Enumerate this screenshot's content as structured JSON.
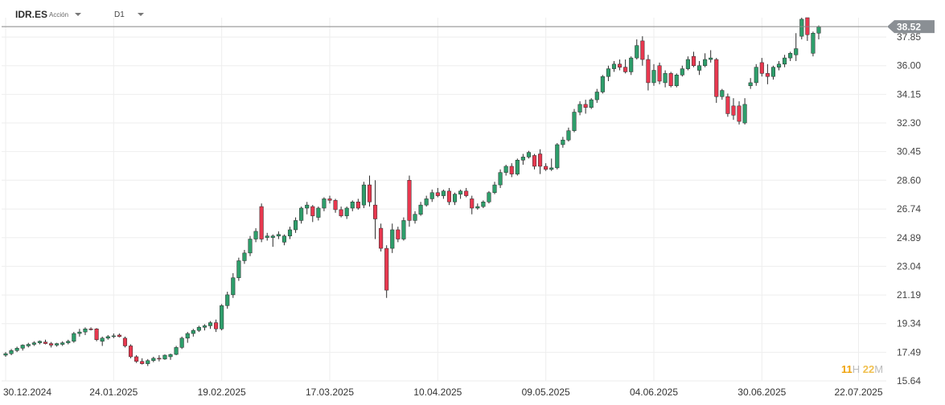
{
  "toolbar": {
    "symbol": "IDR.ES",
    "type_label": "Acción",
    "timeframe": "D1"
  },
  "timer": {
    "hours": "11",
    "hours_unit": "H",
    "minutes": "22",
    "minutes_unit": "M"
  },
  "chart_data": {
    "type": "candlestick",
    "title": "",
    "xlabel": "",
    "ylabel": "",
    "ylim": [
      15.64,
      39.1
    ],
    "y_ticks": [
      "37.85",
      "36.00",
      "34.15",
      "32.30",
      "30.45",
      "28.60",
      "26.74",
      "24.89",
      "23.04",
      "21.19",
      "19.34",
      "17.49",
      "15.64"
    ],
    "x_ticks": [
      "30.12.2024",
      "24.01.2025",
      "19.02.2025",
      "17.03.2025",
      "10.04.2025",
      "09.05.2025",
      "04.06.2025",
      "30.06.2025",
      "22.07.2025"
    ],
    "x_tick_index": [
      0,
      19,
      38,
      57,
      76,
      95,
      114,
      133,
      150
    ],
    "last_price": "38.52",
    "colors": {
      "up": "#2e9e6b",
      "down": "#e8384f",
      "grid": "#eeeeee",
      "price_line": "#888888",
      "price_tag": "#8a8f94"
    },
    "candles": [
      [
        17.3,
        17.5,
        17.2,
        17.4
      ],
      [
        17.4,
        17.7,
        17.3,
        17.6
      ],
      [
        17.6,
        17.85,
        17.5,
        17.75
      ],
      [
        17.75,
        18.0,
        17.6,
        17.95
      ],
      [
        17.9,
        18.1,
        17.8,
        18.0
      ],
      [
        18.0,
        18.2,
        17.9,
        18.1
      ],
      [
        18.1,
        18.25,
        18.0,
        18.2
      ],
      [
        18.15,
        18.3,
        18.0,
        18.05
      ],
      [
        18.05,
        18.15,
        17.8,
        17.95
      ],
      [
        17.95,
        18.1,
        17.85,
        18.05
      ],
      [
        18.0,
        18.2,
        17.9,
        18.1
      ],
      [
        18.1,
        18.3,
        18.0,
        18.2
      ],
      [
        18.2,
        18.8,
        18.1,
        18.7
      ],
      [
        18.7,
        19.0,
        18.5,
        18.8
      ],
      [
        18.8,
        19.1,
        18.6,
        19.0
      ],
      [
        19.0,
        19.1,
        18.9,
        18.95
      ],
      [
        19.0,
        19.05,
        18.2,
        18.3
      ],
      [
        18.2,
        18.5,
        17.9,
        18.4
      ],
      [
        18.4,
        18.6,
        18.3,
        18.5
      ],
      [
        18.5,
        18.7,
        18.4,
        18.55
      ],
      [
        18.6,
        18.7,
        18.45,
        18.5
      ],
      [
        18.4,
        18.5,
        17.8,
        17.9
      ],
      [
        17.9,
        18.0,
        17.1,
        17.2
      ],
      [
        17.2,
        17.3,
        16.8,
        16.9
      ],
      [
        16.9,
        17.1,
        16.7,
        16.75
      ],
      [
        16.75,
        17.05,
        16.6,
        16.95
      ],
      [
        16.95,
        17.2,
        16.85,
        17.1
      ],
      [
        17.1,
        17.3,
        16.9,
        17.05
      ],
      [
        17.05,
        17.35,
        17.0,
        17.3
      ],
      [
        17.2,
        17.4,
        17.0,
        17.35
      ],
      [
        17.35,
        17.9,
        17.3,
        17.8
      ],
      [
        17.8,
        18.5,
        17.7,
        18.4
      ],
      [
        18.4,
        18.8,
        18.1,
        18.7
      ],
      [
        18.7,
        19.0,
        18.5,
        18.9
      ],
      [
        18.9,
        19.2,
        18.8,
        19.1
      ],
      [
        19.1,
        19.3,
        18.9,
        19.2
      ],
      [
        19.2,
        19.5,
        19.0,
        19.4
      ],
      [
        19.4,
        19.6,
        18.8,
        19.0
      ],
      [
        19.0,
        20.6,
        18.9,
        20.5
      ],
      [
        20.5,
        21.4,
        20.3,
        21.2
      ],
      [
        21.2,
        22.6,
        21.0,
        22.3
      ],
      [
        22.3,
        23.6,
        22.1,
        23.4
      ],
      [
        23.4,
        24.1,
        23.2,
        23.9
      ],
      [
        23.9,
        25.0,
        23.7,
        24.8
      ],
      [
        24.8,
        25.5,
        24.6,
        25.3
      ],
      [
        26.9,
        27.1,
        24.6,
        24.8
      ],
      [
        24.9,
        25.2,
        24.7,
        25.0
      ],
      [
        24.9,
        25.1,
        24.3,
        25.0
      ],
      [
        25.0,
        25.3,
        24.8,
        25.1
      ],
      [
        24.6,
        25.1,
        24.4,
        25.0
      ],
      [
        25.0,
        25.6,
        24.8,
        25.4
      ],
      [
        25.4,
        26.2,
        25.2,
        26.0
      ],
      [
        26.0,
        26.9,
        25.8,
        26.8
      ],
      [
        26.8,
        27.2,
        26.4,
        27.0
      ],
      [
        26.9,
        27.0,
        25.9,
        26.3
      ],
      [
        26.2,
        26.9,
        26.0,
        26.8
      ],
      [
        26.8,
        27.5,
        26.6,
        27.4
      ],
      [
        27.4,
        27.6,
        27.1,
        27.3
      ],
      [
        27.3,
        27.4,
        26.5,
        26.7
      ],
      [
        26.7,
        26.9,
        26.2,
        26.3
      ],
      [
        26.3,
        26.9,
        26.1,
        26.8
      ],
      [
        26.8,
        27.3,
        26.6,
        27.2
      ],
      [
        27.2,
        27.4,
        26.7,
        26.8
      ],
      [
        27.0,
        28.5,
        26.8,
        28.3
      ],
      [
        28.3,
        28.9,
        26.9,
        27.2
      ],
      [
        27.0,
        28.6,
        24.8,
        26.1
      ],
      [
        25.5,
        25.8,
        24.0,
        24.2
      ],
      [
        24.2,
        24.4,
        21.0,
        21.5
      ],
      [
        24.2,
        25.8,
        23.9,
        25.4
      ],
      [
        25.4,
        25.6,
        24.6,
        24.8
      ],
      [
        24.8,
        26.2,
        24.7,
        26.0
      ],
      [
        28.6,
        28.9,
        25.6,
        26.0
      ],
      [
        26.0,
        26.6,
        25.8,
        26.4
      ],
      [
        26.4,
        27.2,
        26.3,
        27.0
      ],
      [
        27.0,
        27.6,
        26.9,
        27.4
      ],
      [
        27.4,
        28.0,
        27.2,
        27.8
      ],
      [
        27.8,
        28.1,
        27.5,
        27.6
      ],
      [
        27.6,
        28.0,
        27.4,
        27.9
      ],
      [
        27.9,
        28.1,
        27.0,
        27.2
      ],
      [
        27.2,
        27.8,
        27.0,
        27.7
      ],
      [
        27.7,
        28.0,
        27.4,
        27.9
      ],
      [
        27.9,
        28.1,
        27.5,
        27.6
      ],
      [
        27.4,
        27.6,
        26.4,
        26.8
      ],
      [
        26.8,
        27.1,
        26.7,
        26.9
      ],
      [
        26.9,
        27.3,
        26.8,
        27.2
      ],
      [
        27.2,
        27.9,
        27.1,
        27.8
      ],
      [
        27.8,
        28.5,
        27.7,
        28.3
      ],
      [
        28.3,
        29.3,
        28.1,
        29.1
      ],
      [
        29.1,
        29.6,
        28.9,
        29.5
      ],
      [
        29.5,
        29.7,
        28.8,
        29.0
      ],
      [
        29.0,
        30.0,
        28.9,
        29.9
      ],
      [
        29.9,
        30.3,
        29.6,
        30.1
      ],
      [
        30.1,
        30.5,
        30.0,
        30.4
      ],
      [
        30.2,
        30.3,
        29.3,
        29.5
      ],
      [
        30.3,
        30.6,
        29.0,
        29.5
      ],
      [
        29.5,
        29.7,
        29.2,
        29.3
      ],
      [
        29.3,
        30.0,
        29.2,
        29.4
      ],
      [
        29.4,
        31.0,
        29.3,
        30.9
      ],
      [
        30.9,
        31.4,
        30.7,
        31.2
      ],
      [
        31.2,
        32.0,
        31.1,
        31.8
      ],
      [
        31.8,
        33.2,
        31.7,
        33.0
      ],
      [
        33.0,
        33.7,
        32.8,
        33.5
      ],
      [
        33.5,
        33.8,
        32.9,
        33.3
      ],
      [
        33.3,
        33.9,
        33.2,
        33.8
      ],
      [
        33.8,
        34.5,
        33.6,
        34.3
      ],
      [
        34.3,
        35.4,
        34.2,
        35.3
      ],
      [
        35.3,
        36.0,
        35.0,
        35.8
      ],
      [
        35.8,
        36.3,
        35.6,
        36.1
      ],
      [
        36.1,
        36.4,
        35.7,
        35.9
      ],
      [
        35.9,
        36.4,
        35.5,
        35.6
      ],
      [
        35.6,
        36.6,
        35.4,
        36.5
      ],
      [
        36.5,
        37.7,
        36.4,
        37.3
      ],
      [
        37.6,
        37.9,
        36.0,
        36.4
      ],
      [
        36.4,
        36.7,
        34.4,
        34.9
      ],
      [
        34.9,
        36.1,
        34.7,
        35.7
      ],
      [
        36.0,
        36.2,
        34.8,
        35.0
      ],
      [
        34.9,
        35.7,
        34.6,
        35.5
      ],
      [
        35.5,
        35.6,
        34.6,
        34.7
      ],
      [
        34.7,
        35.5,
        34.6,
        35.4
      ],
      [
        35.4,
        36.0,
        35.3,
        35.8
      ],
      [
        35.8,
        36.6,
        35.7,
        36.4
      ],
      [
        36.6,
        36.9,
        35.9,
        36.0
      ],
      [
        35.7,
        36.3,
        35.4,
        36.0
      ],
      [
        36.0,
        36.8,
        35.9,
        36.4
      ],
      [
        36.4,
        37.0,
        36.2,
        36.5
      ],
      [
        36.4,
        36.5,
        33.6,
        34.0
      ],
      [
        34.0,
        34.5,
        33.8,
        34.4
      ],
      [
        34.0,
        34.2,
        32.7,
        32.9
      ],
      [
        33.4,
        33.9,
        32.5,
        32.8
      ],
      [
        33.4,
        33.7,
        32.2,
        32.4
      ],
      [
        32.3,
        33.9,
        32.2,
        33.5
      ],
      [
        34.7,
        35.2,
        34.5,
        34.9
      ],
      [
        34.9,
        36.1,
        34.7,
        35.9
      ],
      [
        36.2,
        36.5,
        35.3,
        35.5
      ],
      [
        35.5,
        36.1,
        34.8,
        35.3
      ],
      [
        35.3,
        36.0,
        35.1,
        35.9
      ],
      [
        35.9,
        36.3,
        35.7,
        36.1
      ],
      [
        36.1,
        36.7,
        35.9,
        36.5
      ],
      [
        36.5,
        36.9,
        36.3,
        36.8
      ],
      [
        36.7,
        38.1,
        36.3,
        37.1
      ],
      [
        37.9,
        39.1,
        37.7,
        39.0
      ],
      [
        39.1,
        39.1,
        37.6,
        38.0
      ],
      [
        36.8,
        38.2,
        36.6,
        38.1
      ],
      [
        38.1,
        38.6,
        37.7,
        38.5
      ]
    ]
  }
}
